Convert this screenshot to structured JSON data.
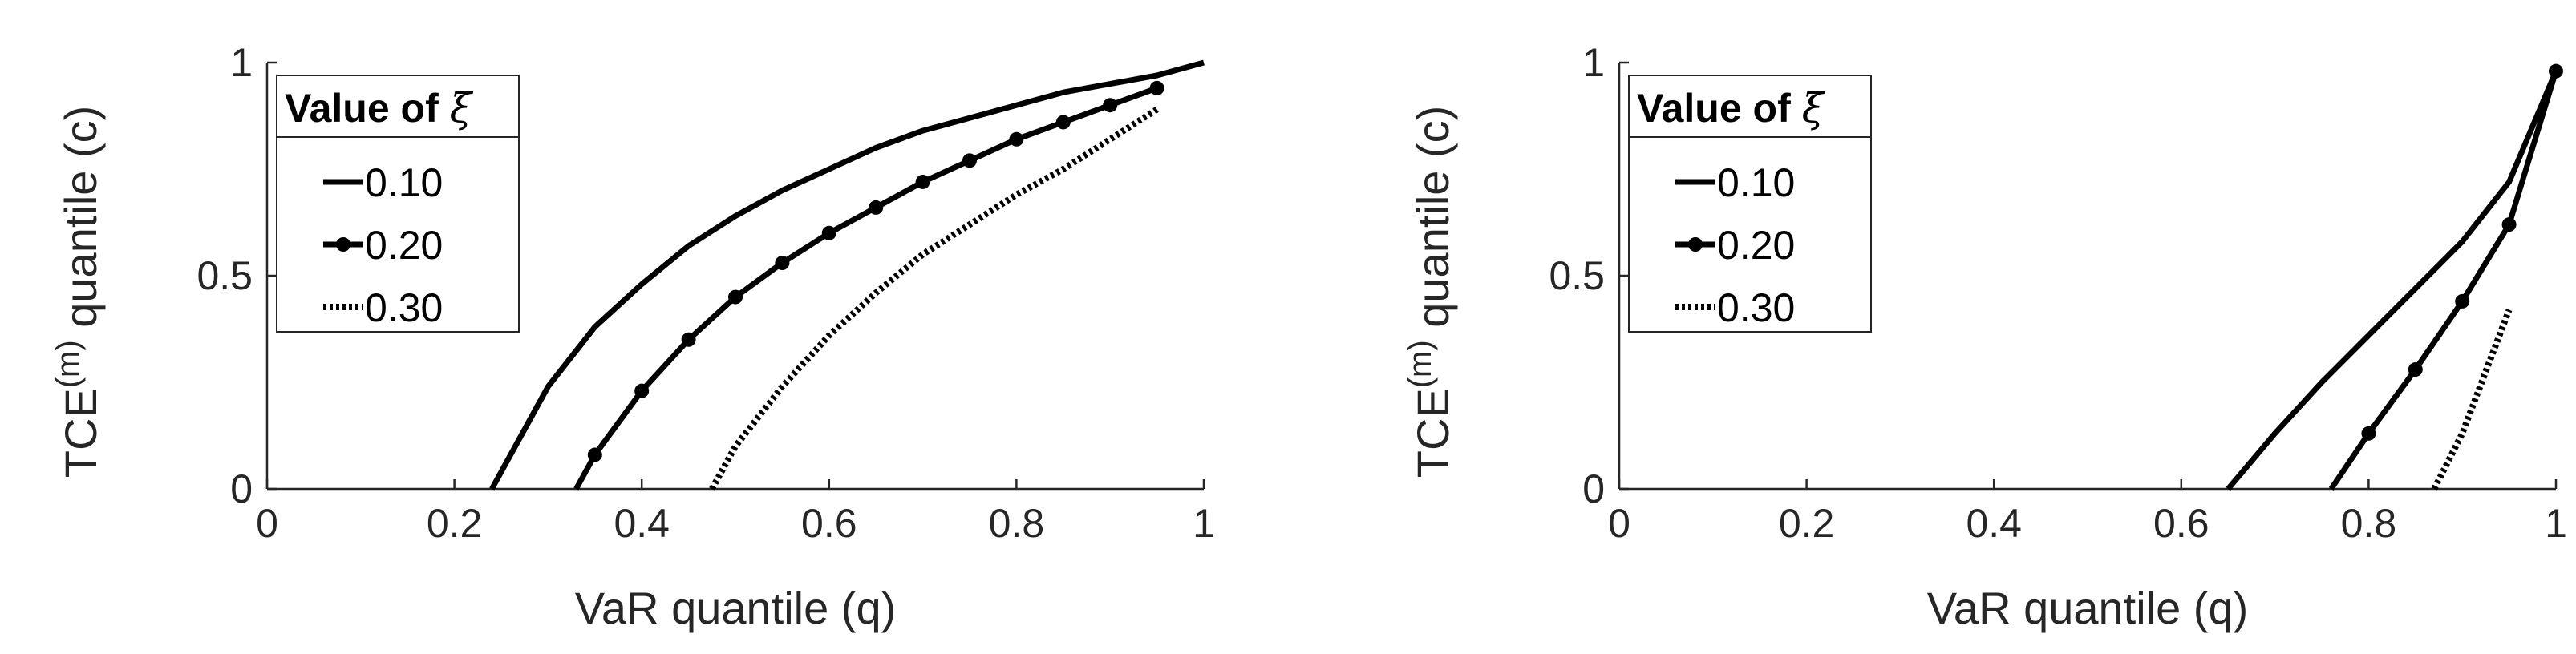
{
  "chart_data": [
    {
      "type": "line",
      "xlabel": "VaR quantile (q)",
      "ylabel_main": "TCE",
      "ylabel_sup": "(m)",
      "ylabel_rest": " quantile (c)",
      "xlim": [
        0,
        1
      ],
      "ylim": [
        0,
        1
      ],
      "xticks": [
        "0",
        "0.2",
        "0.4",
        "0.6",
        "0.8",
        "1"
      ],
      "yticks": [
        "0",
        "0.5",
        "1"
      ],
      "legend": {
        "title": "Value of ",
        "title_symbol": "ξ",
        "position": "top-left"
      },
      "series": [
        {
          "name": "0.10",
          "style": "solid",
          "x": [
            0.24,
            0.25,
            0.3,
            0.35,
            0.4,
            0.45,
            0.5,
            0.55,
            0.6,
            0.65,
            0.7,
            0.75,
            0.8,
            0.85,
            0.9,
            0.95,
            1.0
          ],
          "y": [
            0.0,
            0.04,
            0.24,
            0.38,
            0.48,
            0.57,
            0.64,
            0.7,
            0.75,
            0.8,
            0.84,
            0.87,
            0.9,
            0.93,
            0.95,
            0.97,
            1.0
          ]
        },
        {
          "name": "0.20",
          "style": "solid-marker",
          "x": [
            0.33,
            0.35,
            0.4,
            0.45,
            0.5,
            0.55,
            0.6,
            0.65,
            0.7,
            0.75,
            0.8,
            0.85,
            0.9,
            0.95
          ],
          "y": [
            0.0,
            0.08,
            0.23,
            0.35,
            0.45,
            0.53,
            0.6,
            0.66,
            0.72,
            0.77,
            0.82,
            0.86,
            0.9,
            0.94
          ],
          "markers_from": 1
        },
        {
          "name": "0.30",
          "style": "dotted",
          "x": [
            0.475,
            0.5,
            0.55,
            0.6,
            0.65,
            0.7,
            0.75,
            0.8,
            0.85,
            0.9,
            0.95
          ],
          "y": [
            0.0,
            0.1,
            0.24,
            0.36,
            0.46,
            0.55,
            0.62,
            0.69,
            0.75,
            0.82,
            0.89
          ]
        }
      ]
    },
    {
      "type": "line",
      "xlabel": "VaR quantile (q)",
      "ylabel_main": "TCE",
      "ylabel_sup": "(m)",
      "ylabel_rest": " quantile (c)",
      "xlim": [
        0,
        1
      ],
      "ylim": [
        0,
        1
      ],
      "xticks": [
        "0",
        "0.2",
        "0.4",
        "0.6",
        "0.8",
        "1"
      ],
      "yticks": [
        "0",
        "0.5",
        "1"
      ],
      "legend": {
        "title": "Value of ",
        "title_symbol": "ξ",
        "position": "top-left"
      },
      "series": [
        {
          "name": "0.10",
          "style": "solid",
          "x": [
            0.65,
            0.7,
            0.75,
            0.8,
            0.85,
            0.9,
            0.95,
            1.0
          ],
          "y": [
            0.0,
            0.13,
            0.25,
            0.36,
            0.47,
            0.58,
            0.72,
            0.98
          ]
        },
        {
          "name": "0.20",
          "style": "solid-marker",
          "x": [
            0.76,
            0.8,
            0.85,
            0.9,
            0.95,
            1.0
          ],
          "y": [
            0.0,
            0.13,
            0.28,
            0.44,
            0.62,
            0.98
          ],
          "markers_from": 1
        },
        {
          "name": "0.30",
          "style": "dotted",
          "x": [
            0.87,
            0.9,
            0.95
          ],
          "y": [
            0.0,
            0.13,
            0.42
          ]
        }
      ]
    }
  ]
}
